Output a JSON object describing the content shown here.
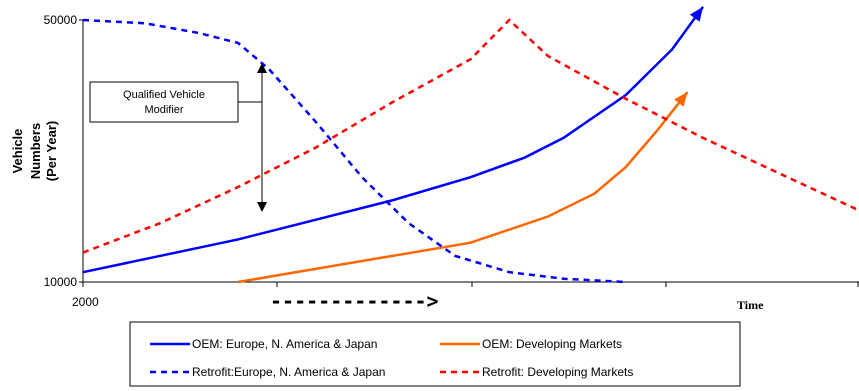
{
  "chart_data": {
    "type": "line",
    "title": "",
    "xlabel": "Time",
    "ylabel": "Vehicle Numbers (Per Year)",
    "ylabel_lines": [
      "Vehicle",
      "Numbers",
      "(Per Year)"
    ],
    "x_tick_label": "2000",
    "y_tick_labels": [
      "50000",
      "10000"
    ],
    "ylim": [
      10000,
      50000
    ],
    "xlim": [
      0,
      100
    ],
    "grid": false,
    "legend_position": "bottom",
    "arrow_label": "------------->",
    "annotation": {
      "lines": [
        "Qualified Vehicle",
        "Modifier"
      ]
    },
    "series": [
      {
        "name": "OEM: Europe, N. America & Japan",
        "color": "#0000ff",
        "dash": "solid",
        "x": [
          0,
          10,
          20,
          30,
          40,
          50,
          57,
          62,
          70,
          76,
          80
        ],
        "y": [
          11500,
          14000,
          16500,
          19500,
          22500,
          26000,
          29000,
          32000,
          38500,
          45500,
          52000
        ]
      },
      {
        "name": "OEM: Developing Markets",
        "color": "#ff6600",
        "dash": "solid",
        "x": [
          20,
          30,
          40,
          50,
          60,
          66,
          70,
          74,
          78
        ],
        "y": [
          10000,
          12000,
          14000,
          16000,
          20000,
          23500,
          27500,
          33000,
          39000
        ]
      },
      {
        "name": "Retrofit:Europe, N. America & Japan",
        "color": "#0000ff",
        "dash": "dashed",
        "x": [
          0,
          8,
          15,
          20,
          24,
          30,
          36,
          42,
          48,
          55,
          62,
          70
        ],
        "y": [
          50000,
          49500,
          48000,
          46500,
          42500,
          34500,
          26000,
          19000,
          14000,
          11500,
          10500,
          10000
        ]
      },
      {
        "name": "Retrofit: Developing Markets",
        "color": "#ff0000",
        "dash": "dashed",
        "x": [
          0,
          10,
          20,
          30,
          40,
          50,
          55,
          60,
          70,
          80,
          90,
          100
        ],
        "y": [
          14500,
          19000,
          24500,
          30500,
          37500,
          44000,
          50000,
          44500,
          38000,
          32000,
          26500,
          21000
        ]
      }
    ]
  }
}
